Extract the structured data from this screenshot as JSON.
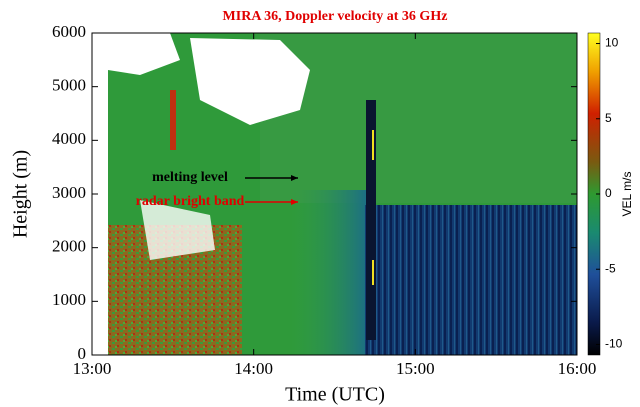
{
  "chart_data": {
    "type": "heatmap",
    "title": "MIRA 36, Doppler velocity at 36 GHz",
    "x_label": "Time (UTC)",
    "y_label": "Height (m)",
    "xlim": [
      13,
      16
    ],
    "xticks": [
      {
        "value": 13,
        "label": "13:00"
      },
      {
        "value": 14,
        "label": "14:00"
      },
      {
        "value": 15,
        "label": "15:00"
      },
      {
        "value": 16,
        "label": "16:00"
      }
    ],
    "ylim": [
      0,
      6000
    ],
    "yticks": [
      0,
      1000,
      2000,
      3000,
      4000,
      5000,
      6000
    ],
    "colorbar_label": "VEL m/s",
    "colorbar_lim": [
      -10.7,
      10.7
    ],
    "colorbar_ticks": [
      -10,
      -5,
      0,
      5,
      10
    ],
    "annotations": [
      {
        "text": "melting level",
        "color": "#000000"
      },
      {
        "text": "radar bright band",
        "color": "#e00000"
      }
    ]
  }
}
